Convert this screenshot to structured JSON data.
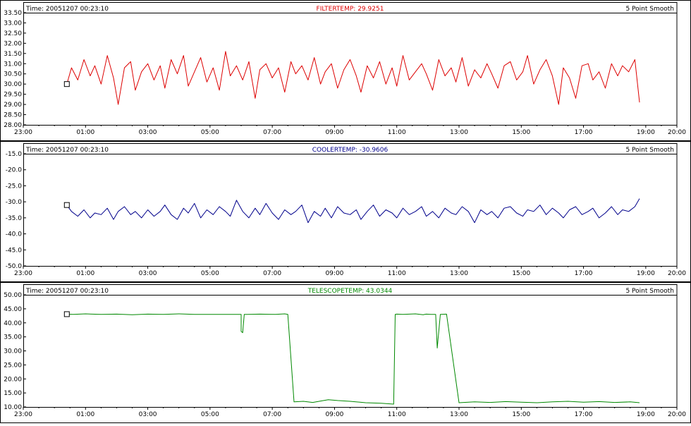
{
  "panels": [
    {
      "time_label": "Time: 20051207 00:23:10",
      "title": "FILTERTEMP: 29.9251",
      "smoothing_label": "5 Point Smooth",
      "color": "#dd0000",
      "chart_data": {
        "type": "line",
        "x_unit": "hours since 23:00",
        "xlim": [
          0,
          21
        ],
        "x_ticks": [
          "23:00",
          "01:00",
          "03:00",
          "05:00",
          "07:00",
          "09:00",
          "11:00",
          "13:00",
          "15:00",
          "17:00",
          "19:00",
          "20:00"
        ],
        "ylim": [
          28.0,
          33.5
        ],
        "y_ticks": [
          "28.00",
          "28.50",
          "29.00",
          "29.50",
          "30.00",
          "30.50",
          "31.00",
          "31.50",
          "32.00",
          "32.50",
          "33.00",
          "33.50"
        ],
        "grid": false,
        "series": [
          {
            "name": "FILTERTEMP",
            "x": [
              1.4,
              1.55,
              1.75,
              1.95,
              2.15,
              2.3,
              2.5,
              2.7,
              2.9,
              3.05,
              3.25,
              3.45,
              3.6,
              3.8,
              4.0,
              4.2,
              4.4,
              4.55,
              4.75,
              4.95,
              5.15,
              5.3,
              5.5,
              5.7,
              5.9,
              6.1,
              6.3,
              6.5,
              6.65,
              6.85,
              7.05,
              7.25,
              7.45,
              7.6,
              7.8,
              8.0,
              8.2,
              8.4,
              8.6,
              8.75,
              8.95,
              9.15,
              9.35,
              9.55,
              9.7,
              9.9,
              10.1,
              10.3,
              10.5,
              10.7,
              10.85,
              11.05,
              11.25,
              11.45,
              11.65,
              11.85,
              12.0,
              12.2,
              12.4,
              12.6,
              12.8,
              12.95,
              13.15,
              13.35,
              13.55,
              13.75,
              13.9,
              14.1,
              14.3,
              14.5,
              14.7,
              14.9,
              15.05,
              15.25,
              15.45,
              15.65,
              15.85,
              16.05,
              16.2,
              16.4,
              16.6,
              16.8,
              17.0,
              17.2,
              17.35,
              17.55,
              17.75,
              17.95,
              18.15,
              18.3,
              18.5,
              18.7,
              18.9,
              19.1,
              19.25,
              19.45,
              19.65,
              19.8
            ],
            "y": [
              30.0,
              30.8,
              30.2,
              31.2,
              30.4,
              30.9,
              30.0,
              31.4,
              30.3,
              29.0,
              30.8,
              31.1,
              29.7,
              30.6,
              31.0,
              30.2,
              30.9,
              29.8,
              31.2,
              30.5,
              31.4,
              29.9,
              30.6,
              31.3,
              30.1,
              30.8,
              29.7,
              31.6,
              30.4,
              30.9,
              30.2,
              31.1,
              29.3,
              30.7,
              31.0,
              30.3,
              30.8,
              29.6,
              31.1,
              30.5,
              30.9,
              30.2,
              31.3,
              30.0,
              30.6,
              31.0,
              29.8,
              30.7,
              31.2,
              30.4,
              29.6,
              30.9,
              30.3,
              31.1,
              30.0,
              30.8,
              29.9,
              31.4,
              30.2,
              30.6,
              31.0,
              30.5,
              29.7,
              31.2,
              30.4,
              30.8,
              30.1,
              31.3,
              29.9,
              30.7,
              30.3,
              31.0,
              30.5,
              29.8,
              30.9,
              31.1,
              30.2,
              30.6,
              31.4,
              30.0,
              30.7,
              31.2,
              30.4,
              29.0,
              30.8,
              30.3,
              29.3,
              30.9,
              31.0,
              30.2,
              30.6,
              29.8,
              31.0,
              30.4,
              30.9,
              30.6,
              31.2,
              29.1
            ]
          }
        ]
      }
    },
    {
      "time_label": "Time: 20051207 00:23:10",
      "title": "COOLERTEMP: -30.9606",
      "smoothing_label": "5 Point Smooth",
      "color": "#00008b",
      "chart_data": {
        "type": "line",
        "x_unit": "hours since 23:00",
        "xlim": [
          0,
          21
        ],
        "x_ticks": [
          "23:00",
          "01:00",
          "03:00",
          "05:00",
          "07:00",
          "09:00",
          "11:00",
          "13:00",
          "15:00",
          "17:00",
          "19:00",
          "20:00"
        ],
        "ylim": [
          -50.0,
          -15.0
        ],
        "y_ticks": [
          "-50.0",
          "-45.0",
          "-40.0",
          "-35.0",
          "-30.0",
          "-25.0",
          "-20.0",
          "-15.0"
        ],
        "grid": false,
        "series": [
          {
            "name": "COOLERTEMP",
            "x": [
              1.4,
              1.55,
              1.75,
              1.95,
              2.15,
              2.3,
              2.5,
              2.7,
              2.9,
              3.05,
              3.25,
              3.45,
              3.6,
              3.8,
              4.0,
              4.2,
              4.4,
              4.55,
              4.75,
              4.95,
              5.15,
              5.3,
              5.5,
              5.7,
              5.9,
              6.1,
              6.3,
              6.5,
              6.65,
              6.85,
              7.05,
              7.25,
              7.45,
              7.6,
              7.8,
              8.0,
              8.2,
              8.4,
              8.6,
              8.75,
              8.95,
              9.15,
              9.35,
              9.55,
              9.7,
              9.9,
              10.1,
              10.3,
              10.5,
              10.7,
              10.85,
              11.05,
              11.25,
              11.45,
              11.65,
              11.85,
              12.0,
              12.2,
              12.4,
              12.6,
              12.8,
              12.95,
              13.15,
              13.35,
              13.55,
              13.75,
              13.9,
              14.1,
              14.3,
              14.5,
              14.7,
              14.9,
              15.05,
              15.25,
              15.45,
              15.65,
              15.85,
              16.05,
              16.2,
              16.4,
              16.6,
              16.8,
              17.0,
              17.2,
              17.35,
              17.55,
              17.75,
              17.95,
              18.15,
              18.3,
              18.5,
              18.7,
              18.9,
              19.1,
              19.25,
              19.45,
              19.65,
              19.8
            ],
            "y": [
              -31.0,
              -33.0,
              -34.5,
              -32.5,
              -35.0,
              -33.5,
              -34.0,
              -32.0,
              -35.5,
              -33.0,
              -31.5,
              -34.0,
              -33.0,
              -35.0,
              -32.5,
              -34.5,
              -33.0,
              -31.0,
              -34.0,
              -35.5,
              -32.0,
              -33.5,
              -30.5,
              -35.0,
              -32.5,
              -34.0,
              -31.5,
              -33.0,
              -34.5,
              -29.5,
              -33.0,
              -35.0,
              -32.0,
              -34.0,
              -30.5,
              -33.5,
              -35.5,
              -32.5,
              -34.0,
              -33.0,
              -31.0,
              -36.5,
              -33.0,
              -34.5,
              -32.0,
              -35.0,
              -31.5,
              -33.5,
              -34.0,
              -32.5,
              -35.5,
              -33.0,
              -31.0,
              -34.5,
              -32.5,
              -33.5,
              -35.0,
              -32.0,
              -34.0,
              -33.0,
              -31.5,
              -34.5,
              -33.0,
              -35.0,
              -32.0,
              -33.5,
              -34.0,
              -31.5,
              -33.0,
              -36.5,
              -32.5,
              -34.0,
              -33.0,
              -35.0,
              -32.0,
              -31.5,
              -33.5,
              -34.5,
              -32.5,
              -33.0,
              -31.0,
              -34.0,
              -32.0,
              -33.5,
              -35.0,
              -32.5,
              -31.5,
              -34.0,
              -33.0,
              -32.0,
              -35.0,
              -33.5,
              -31.5,
              -34.0,
              -32.5,
              -33.0,
              -31.5,
              -29.0
            ]
          }
        ]
      }
    },
    {
      "time_label": "Time: 20051207 00:23:10",
      "title": "TELESCOPETEMP: 43.0344",
      "smoothing_label": "5 Point Smooth",
      "color": "#008800",
      "chart_data": {
        "type": "line",
        "x_unit": "hours since 23:00",
        "xlim": [
          0,
          21
        ],
        "x_ticks": [
          "23:00",
          "01:00",
          "03:00",
          "05:00",
          "07:00",
          "09:00",
          "11:00",
          "13:00",
          "15:00",
          "17:00",
          "19:00",
          "20:00"
        ],
        "ylim": [
          10.0,
          50.0
        ],
        "y_ticks": [
          "10.00",
          "15.00",
          "20.00",
          "25.00",
          "30.00",
          "35.00",
          "40.00",
          "45.00",
          "50.00"
        ],
        "grid": false,
        "series": [
          {
            "name": "TELESCOPETEMP",
            "x": [
              1.4,
              1.6,
              2.0,
              2.5,
              3.0,
              3.5,
              4.0,
              4.5,
              5.0,
              5.5,
              6.0,
              6.55,
              7.0,
              7.0,
              7.05,
              7.1,
              7.2,
              7.6,
              8.1,
              8.4,
              8.5,
              8.7,
              9.0,
              9.3,
              9.6,
              9.8,
              10.1,
              10.5,
              11.0,
              11.5,
              11.9,
              11.95,
              12.0,
              12.2,
              12.6,
              12.85,
              12.9,
              12.95,
              13.1,
              13.25,
              13.3,
              13.4,
              13.6,
              14.0,
              14.5,
              15.0,
              15.5,
              16.0,
              16.5,
              17.0,
              17.5,
              18.0,
              18.5,
              19.0,
              19.5,
              19.8
            ],
            "y": [
              43.1,
              43.0,
              43.2,
              43.0,
              43.1,
              42.9,
              43.1,
              43.0,
              43.2,
              43.0,
              43.0,
              43.0,
              43.0,
              37.0,
              36.5,
              43.0,
              43.0,
              43.1,
              43.0,
              43.2,
              43.0,
              11.8,
              12.0,
              11.6,
              12.2,
              12.6,
              12.3,
              12.0,
              11.5,
              11.3,
              11.0,
              43.0,
              43.1,
              43.0,
              43.2,
              42.9,
              43.0,
              43.1,
              43.0,
              43.0,
              31.0,
              43.0,
              43.1,
              11.5,
              11.8,
              11.6,
              11.9,
              11.7,
              11.5,
              11.8,
              12.0,
              11.7,
              11.9,
              11.6,
              11.8,
              11.5
            ]
          }
        ]
      }
    }
  ]
}
